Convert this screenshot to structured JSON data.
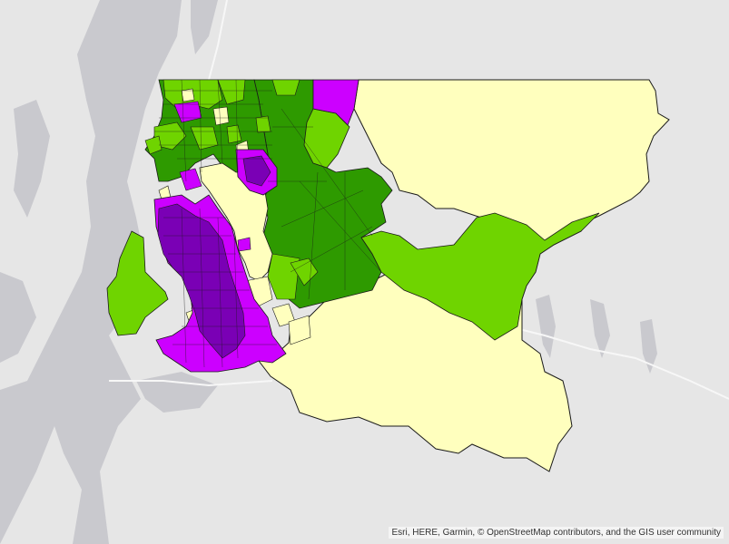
{
  "map": {
    "colors": {
      "land": "#e6e6e6",
      "water": "#c9c9ce",
      "road": "#f7f7f7",
      "outline": "#1a1a1a",
      "class_low": "#ffffbe",
      "class_mid_low": "#6fd400",
      "class_mid": "#2e9a00",
      "class_high": "#cc00ff",
      "class_top": "#7a00b5"
    },
    "attribution": "Esri, HERE, Garmin, © OpenStreetMap contributors, and the GIS user community"
  }
}
